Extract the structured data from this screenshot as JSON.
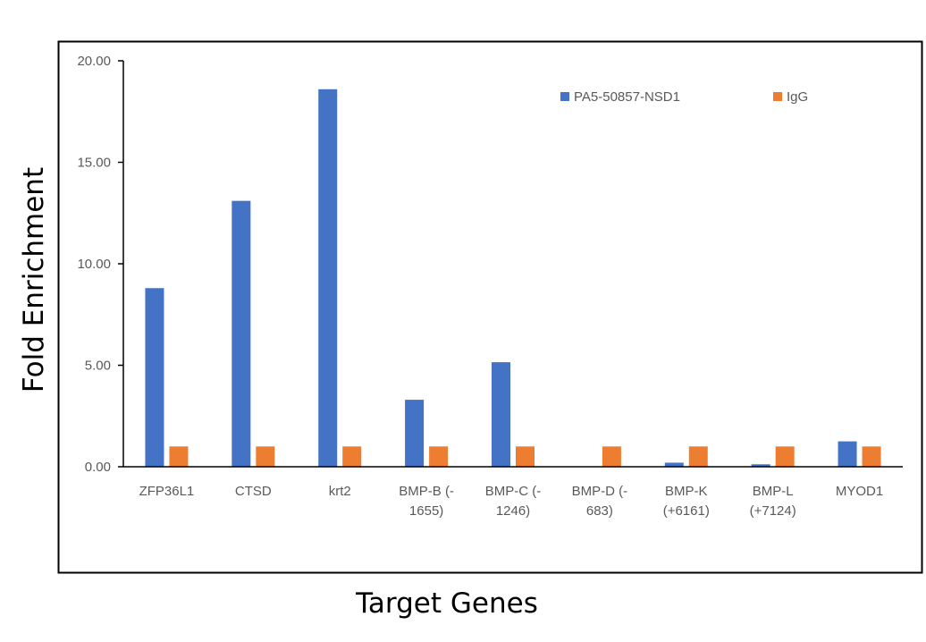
{
  "chart_data": {
    "type": "bar",
    "title": "",
    "xlabel": "Target Genes",
    "ylabel": "Fold Enrichment",
    "ylim": [
      0,
      20
    ],
    "yticks": [
      "0.00",
      "5.00",
      "10.00",
      "15.00",
      "20.00"
    ],
    "ytick_values": [
      0,
      5,
      10,
      15,
      20
    ],
    "grid": false,
    "legend_position": "top-right",
    "categories": [
      [
        "ZFP36L1"
      ],
      [
        "CTSD"
      ],
      [
        "krt2"
      ],
      [
        "BMP-B (-",
        "1655)"
      ],
      [
        "BMP-C (-",
        "1246)"
      ],
      [
        "BMP-D (-",
        "683)"
      ],
      [
        "BMP-K",
        "(+6161)"
      ],
      [
        "BMP-L",
        "(+7124)"
      ],
      [
        "MYOD1"
      ]
    ],
    "series": [
      {
        "name": "PA5-50857-NSD1",
        "color": "#4472C4",
        "values": [
          8.8,
          13.1,
          18.6,
          3.3,
          5.15,
          0.0,
          0.2,
          0.12,
          1.25
        ]
      },
      {
        "name": "IgG",
        "color": "#ED7D31",
        "values": [
          1.0,
          1.0,
          1.0,
          1.0,
          1.0,
          1.0,
          1.0,
          1.0,
          1.0
        ]
      }
    ]
  }
}
